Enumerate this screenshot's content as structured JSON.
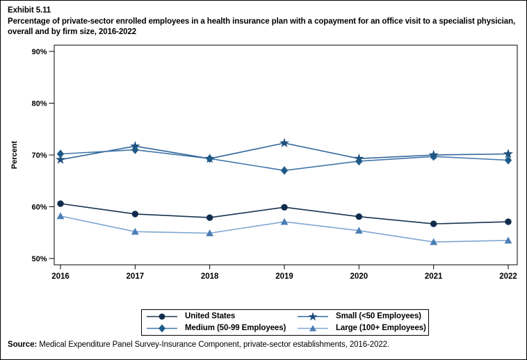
{
  "header": {
    "exhibit_label": "Exhibit 5.11",
    "title": "Percentage of private-sector enrolled employees in a health insurance plan with a copayment for an office visit to a specialist physician, overall and by firm size, 2016-2022"
  },
  "chart_data": {
    "type": "line",
    "x": [
      2016,
      2017,
      2018,
      2019,
      2020,
      2021,
      2022
    ],
    "xtick_labels": [
      "2016",
      "2017",
      "2018",
      "2019",
      "2020",
      "2021",
      "2022"
    ],
    "xlabel": "",
    "ylabel": "Percent",
    "ylim": [
      50,
      90
    ],
    "yticks": [
      90,
      80,
      70,
      60,
      50
    ],
    "ytick_labels": [
      "90%",
      "80%",
      "70%",
      "60%",
      "50%"
    ],
    "grid": false,
    "legend_position": "bottom",
    "frame": true,
    "series": [
      {
        "name": "United States",
        "marker": "circle",
        "marker_color": "#102c4d",
        "line_color": "#16324f",
        "values": [
          60.6,
          58.6,
          57.9,
          59.9,
          58.1,
          56.7,
          57.1
        ]
      },
      {
        "name": "Small (<50 Employees)",
        "marker": "star",
        "marker_color": "#1d4e7c",
        "line_color": "#2e6499",
        "values": [
          69.1,
          71.7,
          69.3,
          72.3,
          69.3,
          70.0,
          70.2
        ]
      },
      {
        "name": "Medium (50-99 Employees)",
        "marker": "diamond",
        "marker_color": "#1e5a87",
        "line_color": "#3f75a8",
        "values": [
          70.2,
          71.0,
          69.3,
          67.0,
          68.8,
          69.7,
          69.0
        ]
      },
      {
        "name": "Large (100+ Employees)",
        "marker": "triangle",
        "marker_color": "#4a7db3",
        "line_color": "#7fa7d1",
        "values": [
          58.2,
          55.2,
          54.9,
          57.1,
          55.4,
          53.2,
          53.5
        ]
      }
    ]
  },
  "source": {
    "label": "Source:",
    "text": " Medical Expenditure Panel Survey-Insurance Component, private-sector establishments, 2016-2022."
  }
}
